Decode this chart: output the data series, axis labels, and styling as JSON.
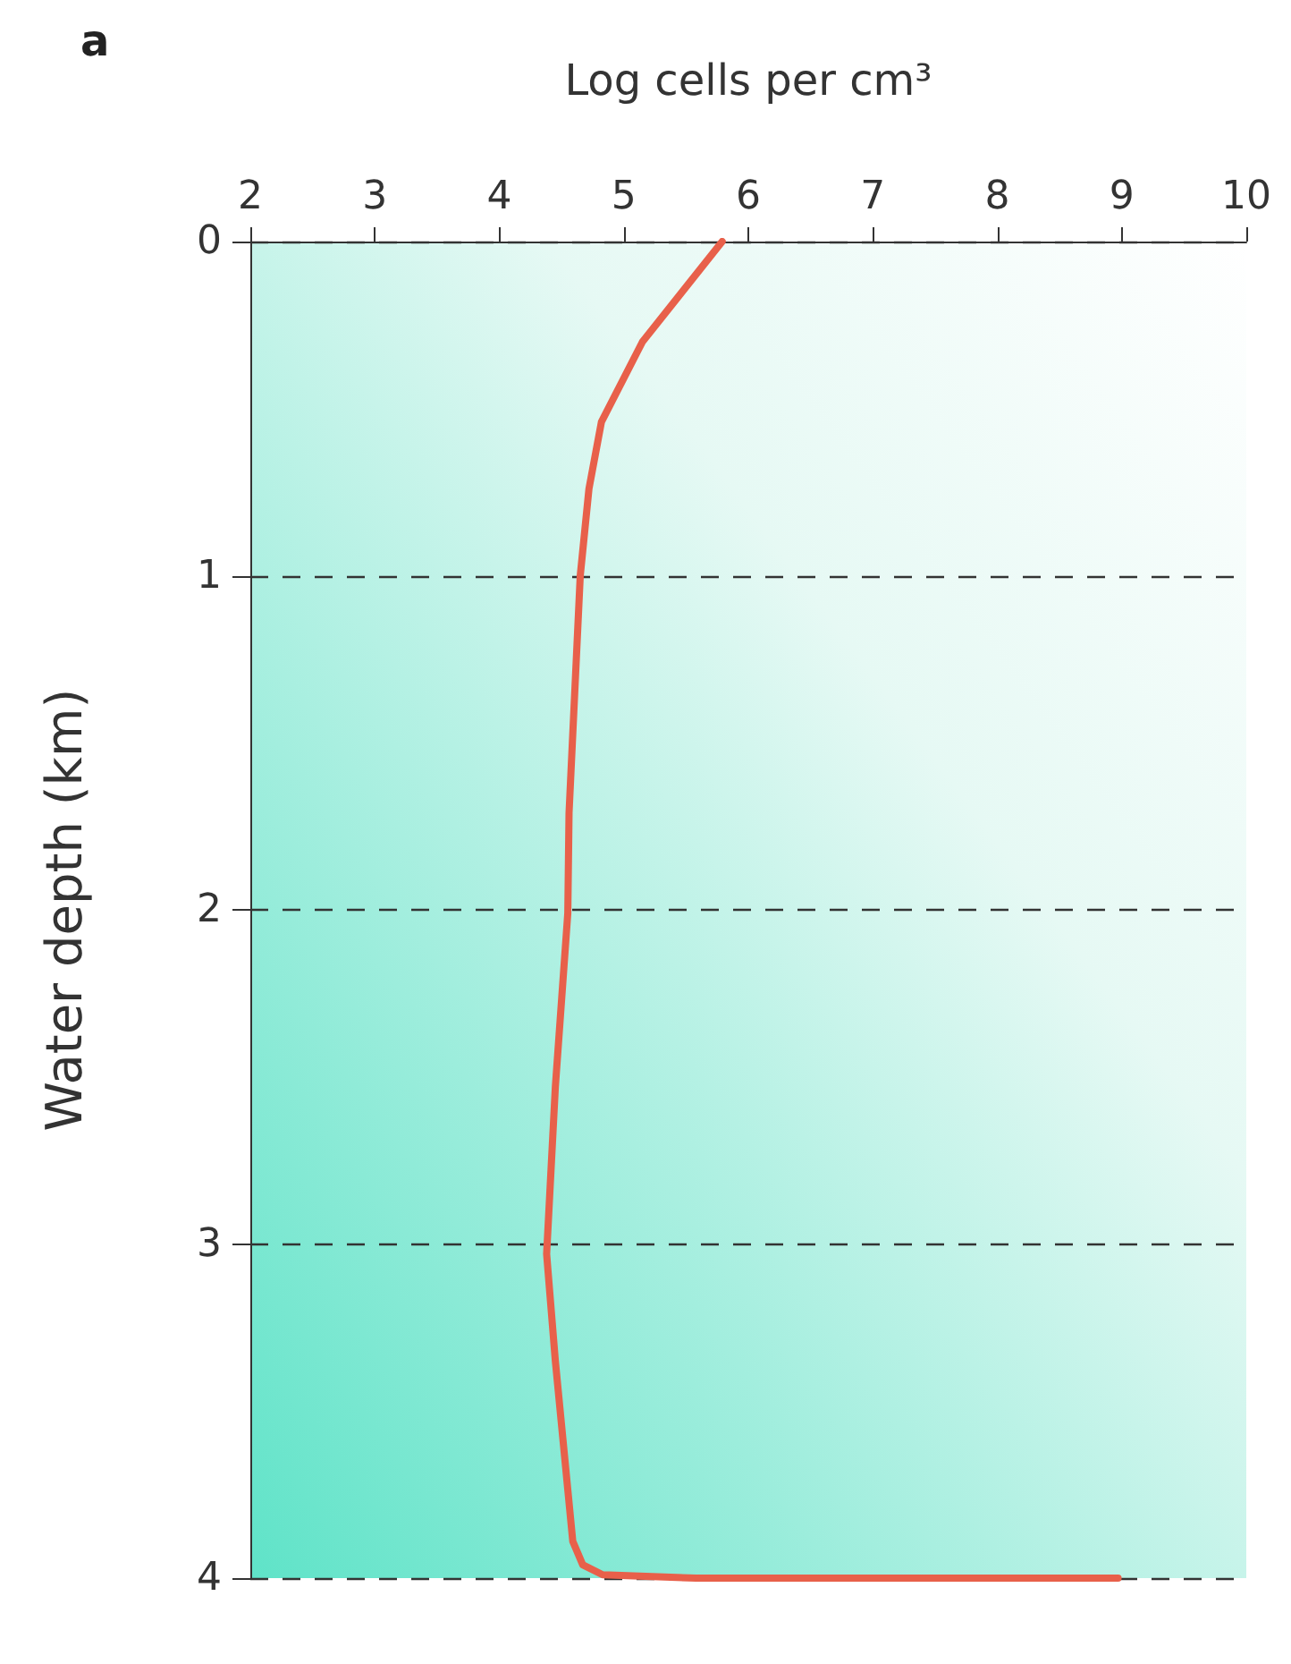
{
  "chart_data": {
    "type": "line",
    "title": "a",
    "xlabel": "Log cells per cm³",
    "ylabel": "Water depth (km)",
    "series": [
      {
        "color": "#e8604a",
        "x": [
          5.79,
          5.15,
          4.82,
          4.72,
          4.65,
          4.56,
          4.55,
          4.45,
          4.38,
          4.45,
          4.59,
          4.67,
          4.83,
          5.58,
          8.97
        ],
        "values": [
          0,
          0.3,
          0.54,
          0.74,
          1.0,
          1.71,
          2.01,
          2.53,
          3.03,
          3.35,
          3.89,
          3.96,
          3.99,
          4.0,
          4.0
        ]
      }
    ],
    "xlim": [
      2,
      10
    ],
    "xticks": [
      2,
      3,
      4,
      5,
      6,
      7,
      8,
      9,
      10
    ],
    "ylim": [
      4,
      0
    ],
    "yticks": [
      0,
      1,
      2,
      3,
      4
    ],
    "grid": "y",
    "marker": "none",
    "line_style": "solid"
  }
}
